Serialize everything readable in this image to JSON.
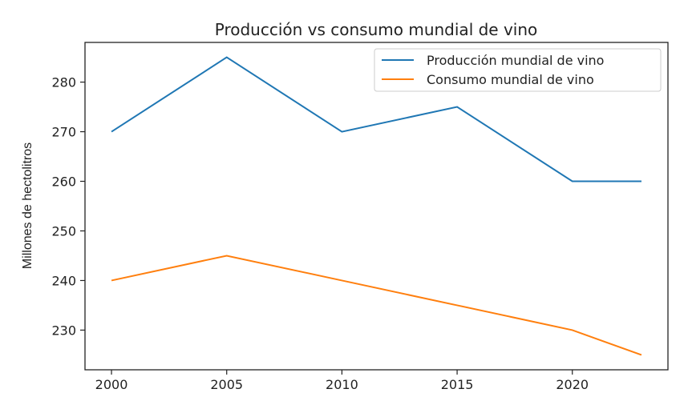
{
  "chart_data": {
    "type": "line",
    "title": "Producción vs consumo mundial de vino",
    "xlabel": "",
    "ylabel": "Millones de hectolitros",
    "x": [
      2000,
      2005,
      2010,
      2015,
      2020,
      2023
    ],
    "series": [
      {
        "name": "Producción mundial de vino",
        "color": "#1f77b4",
        "values": [
          270,
          285,
          270,
          275,
          260,
          260
        ]
      },
      {
        "name": "Consumo mundial de vino",
        "color": "#ff7f0e",
        "values": [
          240,
          245,
          240,
          235,
          230,
          225
        ]
      }
    ],
    "xticks": [
      "2000",
      "2005",
      "2010",
      "2015",
      "2020"
    ],
    "yticks": [
      "230",
      "240",
      "250",
      "260",
      "270",
      "280"
    ],
    "xlim": [
      1998.85,
      2024.15
    ],
    "ylim": [
      222,
      288
    ],
    "grid": false,
    "legend": "upper-right"
  }
}
